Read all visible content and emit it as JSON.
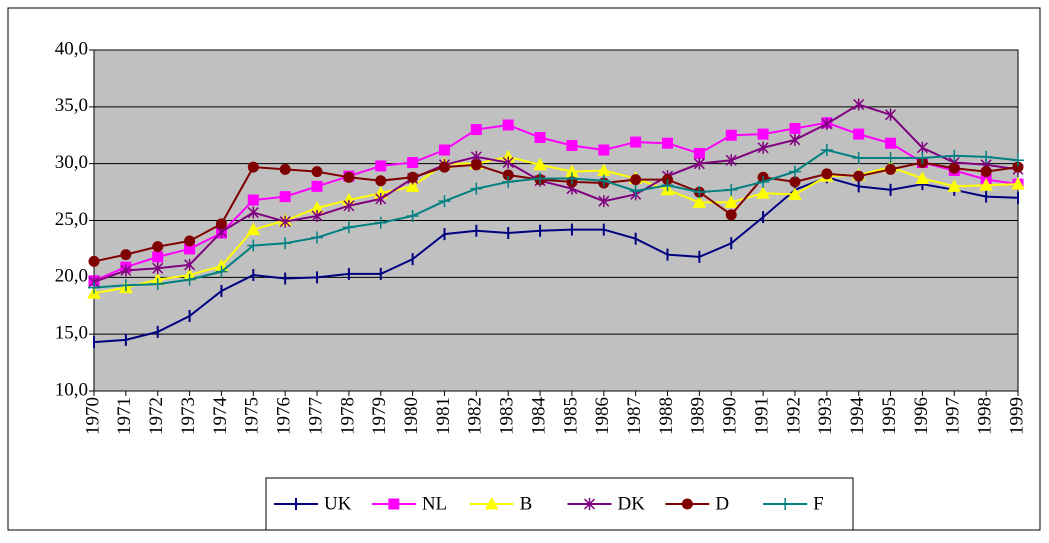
{
  "chart_data": {
    "type": "line",
    "categories": [
      "1970",
      "1971",
      "1972",
      "1973",
      "1974",
      "1975",
      "1976",
      "1977",
      "1978",
      "1979",
      "1980",
      "1981",
      "1982",
      "1983",
      "1984",
      "1985",
      "1986",
      "1987",
      "1988",
      "1989",
      "1990",
      "1991",
      "1992",
      "1993",
      "1994",
      "1995",
      "1996",
      "1997",
      "1998",
      "1999"
    ],
    "series": [
      {
        "name": "UK",
        "color": "#000080",
        "marker": "dash",
        "values": [
          14.3,
          14.5,
          15.2,
          16.6,
          18.8,
          20.2,
          19.9,
          20.0,
          20.3,
          20.3,
          21.6,
          23.8,
          24.1,
          23.9,
          24.1,
          24.2,
          24.2,
          23.4,
          22.0,
          21.8,
          23.0,
          25.3,
          27.7,
          28.8,
          28.0,
          27.7,
          28.2,
          27.7,
          27.1,
          27.0
        ]
      },
      {
        "name": "NL",
        "color": "#ff00ff",
        "marker": "square",
        "values": [
          19.7,
          20.9,
          21.8,
          22.5,
          23.9,
          26.8,
          27.1,
          28.0,
          28.9,
          29.8,
          30.1,
          31.2,
          33.0,
          33.4,
          32.3,
          31.6,
          31.2,
          31.9,
          31.8,
          30.9,
          32.5,
          32.6,
          33.1,
          33.6,
          32.6,
          31.8,
          30.1,
          29.4,
          28.6,
          28.2
        ]
      },
      {
        "name": "B",
        "color": "#ffff00",
        "marker": "triangle",
        "values": [
          18.6,
          19.1,
          19.8,
          20.2,
          21.0,
          24.2,
          25.0,
          26.1,
          26.8,
          27.4,
          28.0,
          30.0,
          30.0,
          30.6,
          29.9,
          29.3,
          29.4,
          28.7,
          27.7,
          26.6,
          26.6,
          27.4,
          27.3,
          28.9,
          29.0,
          29.7,
          28.7,
          28.0,
          28.1,
          28.2
        ]
      },
      {
        "name": "DK",
        "color": "#800080",
        "marker": "star",
        "values": [
          19.6,
          20.6,
          20.8,
          21.1,
          24.0,
          25.7,
          24.9,
          25.4,
          26.3,
          26.9,
          28.7,
          29.9,
          30.6,
          30.1,
          28.5,
          27.8,
          26.7,
          27.3,
          28.9,
          30.0,
          30.3,
          31.4,
          32.1,
          33.5,
          35.2,
          34.3,
          31.4,
          30.1,
          29.9,
          29.5
        ]
      },
      {
        "name": "D",
        "color": "#800000",
        "marker": "circle",
        "values": [
          21.4,
          22.0,
          22.7,
          23.2,
          24.7,
          29.7,
          29.5,
          29.3,
          28.8,
          28.5,
          28.8,
          29.7,
          29.9,
          29.0,
          28.6,
          28.4,
          28.3,
          28.6,
          28.6,
          27.5,
          25.5,
          28.8,
          28.4,
          29.1,
          28.9,
          29.5,
          30.1,
          29.6,
          29.3,
          29.7
        ]
      },
      {
        "name": "F",
        "color": "#008080",
        "marker": "plus",
        "values": [
          19.1,
          19.3,
          19.4,
          19.8,
          20.5,
          22.8,
          23.0,
          23.5,
          24.4,
          24.8,
          25.4,
          26.7,
          27.8,
          28.4,
          28.7,
          28.7,
          28.5,
          27.6,
          28.1,
          27.5,
          27.7,
          28.4,
          29.3,
          31.2,
          30.5,
          30.5,
          30.5,
          30.7,
          30.6,
          30.3
        ]
      }
    ],
    "ylim": [
      10,
      40
    ],
    "yticks": [
      {
        "value": 10,
        "label": "10,0"
      },
      {
        "value": 15,
        "label": "15,0"
      },
      {
        "value": 20,
        "label": "20,0"
      },
      {
        "value": 25,
        "label": "25,0"
      },
      {
        "value": 30,
        "label": "30,0"
      },
      {
        "value": 35,
        "label": "35,0"
      },
      {
        "value": 40,
        "label": "40,0"
      }
    ],
    "grid": true,
    "plot_background": "#c0c0c0",
    "legend": "bottom"
  }
}
